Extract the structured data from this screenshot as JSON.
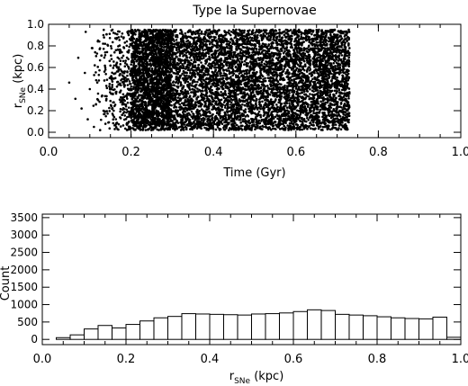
{
  "chart_data": [
    {
      "type": "scatter",
      "title": "Type Ia Supernovae",
      "xlabel": "Time (Gyr)",
      "ylabel_main": "r",
      "ylabel_sub": "SNe",
      "ylabel_unit": "(kpc)",
      "xlim": [
        0.0,
        1.0
      ],
      "ylim": [
        -0.05,
        1.0
      ],
      "xticks": [
        0.0,
        0.2,
        0.4,
        0.6,
        0.8,
        1.0
      ],
      "xtick_labels": [
        "0.0",
        "0.2",
        "0.4",
        "0.6",
        "0.8",
        "1.0"
      ],
      "yticks": [
        0.0,
        0.2,
        0.4,
        0.6,
        0.8,
        1.0
      ],
      "ytick_labels": [
        "0.0",
        "0.2",
        "0.4",
        "0.6",
        "0.8",
        "1.0"
      ],
      "color": "#000000",
      "points": [
        [
          0.05,
          0.46
        ],
        [
          0.065,
          0.31
        ],
        [
          0.072,
          0.69
        ],
        [
          0.08,
          0.22
        ],
        [
          0.088,
          0.55
        ],
        [
          0.09,
          0.93
        ],
        [
          0.095,
          0.12
        ],
        [
          0.1,
          0.4
        ],
        [
          0.105,
          0.78
        ],
        [
          0.11,
          0.05
        ],
        [
          0.112,
          0.62
        ],
        [
          0.115,
          0.26
        ],
        [
          0.12,
          0.85
        ],
        [
          0.122,
          0.48
        ],
        [
          0.125,
          0.02
        ],
        [
          0.128,
          0.71
        ],
        [
          0.13,
          0.34
        ],
        [
          0.133,
          0.9
        ],
        [
          0.136,
          0.17
        ],
        [
          0.138,
          0.58
        ],
        [
          0.14,
          0.43
        ],
        [
          0.143,
          0.81
        ],
        [
          0.145,
          0.09
        ],
        [
          0.148,
          0.66
        ],
        [
          0.15,
          0.29
        ],
        [
          0.152,
          0.52
        ],
        [
          0.155,
          0.95
        ],
        [
          0.158,
          0.2
        ],
        [
          0.16,
          0.74
        ],
        [
          0.163,
          0.37
        ],
        [
          0.165,
          0.61
        ],
        [
          0.167,
          0.03
        ],
        [
          0.17,
          0.88
        ],
        [
          0.172,
          0.45
        ],
        [
          0.175,
          0.13
        ],
        [
          0.178,
          0.69
        ],
        [
          0.18,
          0.32
        ],
        [
          0.182,
          0.56
        ],
        [
          0.185,
          0.83
        ],
        [
          0.188,
          0.24
        ],
        [
          0.19,
          0.07
        ],
        [
          0.193,
          0.49
        ],
        [
          0.195,
          0.76
        ],
        [
          0.198,
          0.39
        ],
        [
          0.2,
          0.92
        ]
      ]
    },
    {
      "type": "bar",
      "title": "",
      "xlabel_main": "r",
      "xlabel_sub": "SNe",
      "xlabel_unit": "(kpc)",
      "ylabel": "Count",
      "xlim": [
        0.0,
        1.0
      ],
      "ylim": [
        -150,
        3600
      ],
      "xticks": [
        0.0,
        0.2,
        0.4,
        0.6,
        0.8,
        1.0
      ],
      "xtick_labels": [
        "0.0",
        "0.2",
        "0.4",
        "0.6",
        "0.8",
        "1.0"
      ],
      "yticks": [
        0,
        500,
        1000,
        1500,
        2000,
        2500,
        3000,
        3500
      ],
      "ytick_labels": [
        "0",
        "500",
        "1000",
        "1500",
        "2000",
        "2500",
        "3000",
        "3500"
      ],
      "bin_width": 0.0333,
      "bins_start": [
        0.0,
        0.0333,
        0.0667,
        0.1,
        0.1333,
        0.1667,
        0.2,
        0.2333,
        0.2667,
        0.3,
        0.3333,
        0.3667,
        0.4,
        0.4333,
        0.4667,
        0.5,
        0.5333,
        0.5667,
        0.6,
        0.6333,
        0.6667,
        0.7,
        0.7333,
        0.7667,
        0.8,
        0.8333,
        0.8667,
        0.9,
        0.9333,
        0.9667
      ],
      "values": [
        0,
        50,
        130,
        300,
        400,
        330,
        430,
        530,
        620,
        660,
        740,
        730,
        720,
        710,
        700,
        730,
        740,
        760,
        800,
        850,
        830,
        720,
        700,
        680,
        650,
        620,
        600,
        590,
        640,
        60
      ],
      "series": [
        {
          "name": "",
          "values": []
        }
      ]
    }
  ]
}
